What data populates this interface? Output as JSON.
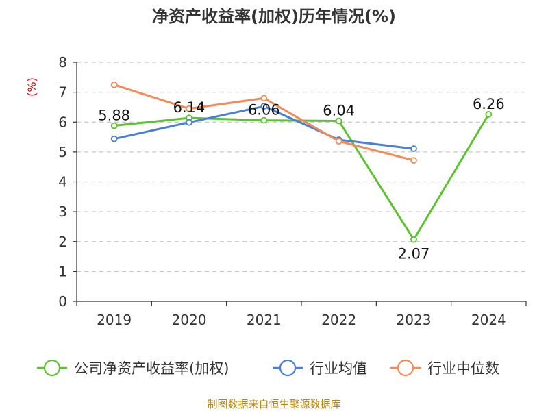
{
  "chart_data": {
    "type": "line",
    "title": "净资产收益率(加权)历年情况(%)",
    "ylabel": "(%)",
    "categories": [
      "2019",
      "2020",
      "2021",
      "2022",
      "2023",
      "2024"
    ],
    "ylim": [
      0,
      8
    ],
    "yticks": [
      0,
      1,
      2,
      3,
      4,
      5,
      6,
      7,
      8
    ],
    "grid": true,
    "legend_position": "bottom",
    "series": [
      {
        "name": "公司净资产收益率(加权)",
        "color": "#5cc230",
        "values": [
          5.88,
          6.14,
          6.06,
          6.04,
          2.07,
          6.26
        ],
        "labels": [
          "5.88",
          "6.14",
          "6.06",
          "6.04",
          "2.07",
          "6.26"
        ]
      },
      {
        "name": "行业均值",
        "color": "#4a7fd8",
        "values": [
          5.44,
          5.99,
          6.53,
          5.41,
          5.11,
          null
        ]
      },
      {
        "name": "行业中位数",
        "color": "#f28b57",
        "values": [
          7.25,
          6.45,
          6.8,
          5.36,
          4.72,
          null
        ]
      }
    ],
    "source": "制图数据来自恒生聚源数据库"
  }
}
